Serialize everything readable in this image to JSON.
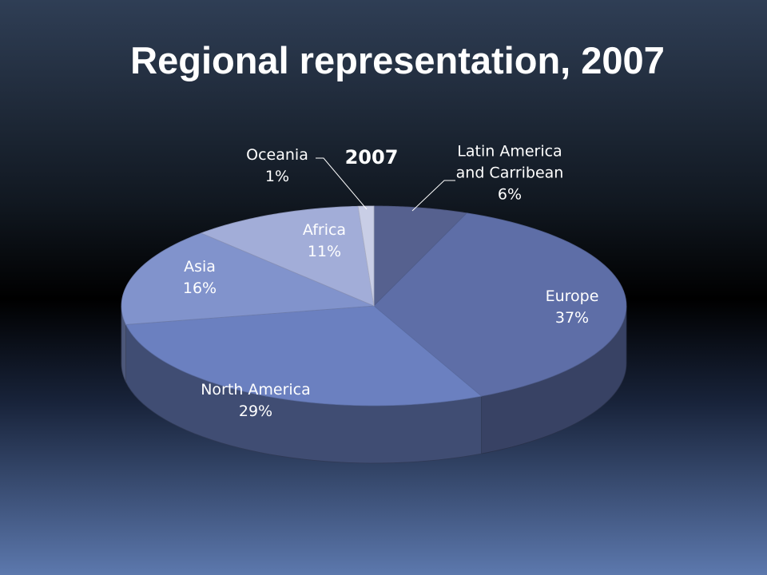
{
  "title": "Regional representation, 2007",
  "chart_data": {
    "type": "pie",
    "title": "2007",
    "categories": [
      "Latin America and Carribean",
      "Europe",
      "North America",
      "Asia",
      "Africa",
      "Oceania"
    ],
    "values": [
      6,
      37,
      29,
      16,
      11,
      1
    ],
    "value_labels": [
      "6%",
      "37%",
      "29%",
      "16%",
      "11%",
      "1%"
    ],
    "colors": [
      "#56618f",
      "#5e6ea7",
      "#6b80c0",
      "#8193cc",
      "#a2add8",
      "#c9cee6"
    ]
  }
}
